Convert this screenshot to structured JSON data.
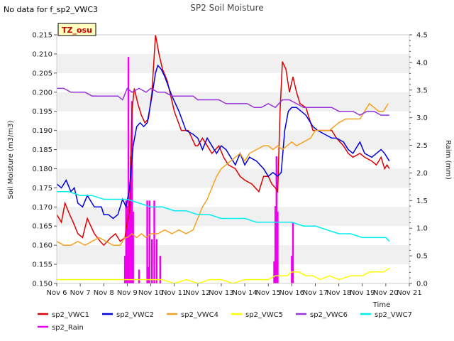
{
  "header": {
    "no_data_note": "No data for f_sp2_VWC3"
  },
  "chart_data": {
    "type": "line",
    "title": "SP2 Soil Moisture",
    "site_badge": "TZ_osu",
    "xlabel": "Time",
    "ylabel": "Soil Moisture (m3/m3)",
    "ylabel_right": "Raim (mm)",
    "xlim": [
      6,
      21
    ],
    "ylim": [
      0.15,
      0.215
    ],
    "ylim_right": [
      0,
      4.5
    ],
    "x_ticks": [
      6,
      7,
      8,
      9,
      10,
      11,
      12,
      13,
      14,
      15,
      16,
      17,
      18,
      19,
      20,
      21
    ],
    "x_tick_labels": [
      "Nov 6",
      "Nov 7",
      "Nov 8",
      "Nov 9",
      "Nov 10",
      "Nov 11",
      "Nov 12",
      "Nov 13",
      "Nov 14",
      "Nov 15",
      "Nov 16",
      "Nov 17",
      "Nov 18",
      "Nov 19",
      "Nov 20",
      "Nov 21"
    ],
    "y_ticks": [
      0.15,
      0.155,
      0.16,
      0.165,
      0.17,
      0.175,
      0.18,
      0.185,
      0.19,
      0.195,
      0.2,
      0.205,
      0.21,
      0.215
    ],
    "y_tick_labels": [
      "0.150",
      "0.155",
      "0.160",
      "0.165",
      "0.170",
      "0.175",
      "0.180",
      "0.185",
      "0.190",
      "0.195",
      "0.200",
      "0.205",
      "0.210",
      "0.215"
    ],
    "y_right_ticks": [
      0.0,
      0.5,
      1.0,
      1.5,
      2.0,
      2.5,
      3.0,
      3.5,
      4.0,
      4.5
    ],
    "y_right_tick_labels": [
      "0.0",
      "0.5",
      "1.0",
      "1.5",
      "2.0",
      "2.5",
      "3.0",
      "3.5",
      "4.0",
      "4.5"
    ],
    "grid": "horizontal bands",
    "legend_position": "bottom",
    "series": [
      {
        "name": "sp2_VWC1",
        "color": "#dd0000",
        "axis": "left",
        "x": [
          6.0,
          6.2,
          6.35,
          6.55,
          6.7,
          6.9,
          7.1,
          7.3,
          7.6,
          7.85,
          8.0,
          8.3,
          8.5,
          8.7,
          8.9,
          9.0,
          9.1,
          9.2,
          9.3,
          9.45,
          9.6,
          9.75,
          9.9,
          10.05,
          10.2,
          10.35,
          10.5,
          10.7,
          11.0,
          11.3,
          11.6,
          11.9,
          12.0,
          12.2,
          12.4,
          12.6,
          12.9,
          13.1,
          13.3,
          13.6,
          13.8,
          14.0,
          14.3,
          14.6,
          14.8,
          15.0,
          15.15,
          15.3,
          15.4,
          15.5,
          15.6,
          15.75,
          15.9,
          16.05,
          16.2,
          16.35,
          16.6,
          16.9,
          17.1,
          17.4,
          17.7,
          17.9,
          18.2,
          18.4,
          18.6,
          18.9,
          19.1,
          19.4,
          19.6,
          19.8,
          19.95,
          20.05,
          20.15
        ],
        "y": [
          0.168,
          0.166,
          0.171,
          0.168,
          0.166,
          0.163,
          0.162,
          0.167,
          0.163,
          0.161,
          0.16,
          0.162,
          0.163,
          0.161,
          0.162,
          0.166,
          0.169,
          0.195,
          0.201,
          0.197,
          0.194,
          0.192,
          0.193,
          0.2,
          0.215,
          0.21,
          0.206,
          0.203,
          0.195,
          0.19,
          0.19,
          0.186,
          0.186,
          0.188,
          0.186,
          0.184,
          0.186,
          0.183,
          0.181,
          0.18,
          0.178,
          0.177,
          0.176,
          0.174,
          0.178,
          0.178,
          0.176,
          0.175,
          0.174,
          0.195,
          0.208,
          0.206,
          0.2,
          0.204,
          0.2,
          0.197,
          0.196,
          0.19,
          0.19,
          0.19,
          0.19,
          0.188,
          0.186,
          0.184,
          0.183,
          0.184,
          0.183,
          0.182,
          0.181,
          0.183,
          0.18,
          0.181,
          0.18
        ]
      },
      {
        "name": "sp2_VWC2",
        "color": "#0000dd",
        "axis": "left",
        "x": [
          6.0,
          6.2,
          6.4,
          6.6,
          6.75,
          6.9,
          7.1,
          7.3,
          7.6,
          7.9,
          8.0,
          8.2,
          8.4,
          8.6,
          8.8,
          8.95,
          9.1,
          9.25,
          9.4,
          9.55,
          9.7,
          9.85,
          10.05,
          10.2,
          10.3,
          10.45,
          10.6,
          10.9,
          11.2,
          11.5,
          11.8,
          12.0,
          12.2,
          12.4,
          12.6,
          12.8,
          13.0,
          13.2,
          13.4,
          13.6,
          13.8,
          14.0,
          14.2,
          14.5,
          14.8,
          15.0,
          15.2,
          15.4,
          15.55,
          15.7,
          15.85,
          16.0,
          16.2,
          16.4,
          16.6,
          16.9,
          17.1,
          17.4,
          17.7,
          17.9,
          18.2,
          18.4,
          18.6,
          18.9,
          19.1,
          19.4,
          19.6,
          19.8,
          19.95,
          20.05,
          20.15
        ],
        "y": [
          0.176,
          0.175,
          0.177,
          0.174,
          0.175,
          0.171,
          0.17,
          0.173,
          0.17,
          0.17,
          0.168,
          0.168,
          0.167,
          0.168,
          0.172,
          0.17,
          0.175,
          0.186,
          0.191,
          0.192,
          0.191,
          0.192,
          0.199,
          0.205,
          0.207,
          0.206,
          0.204,
          0.199,
          0.195,
          0.19,
          0.189,
          0.188,
          0.185,
          0.188,
          0.186,
          0.184,
          0.186,
          0.185,
          0.183,
          0.181,
          0.184,
          0.181,
          0.183,
          0.182,
          0.18,
          0.178,
          0.179,
          0.178,
          0.179,
          0.19,
          0.195,
          0.196,
          0.196,
          0.195,
          0.194,
          0.191,
          0.19,
          0.189,
          0.188,
          0.188,
          0.187,
          0.185,
          0.184,
          0.187,
          0.184,
          0.183,
          0.184,
          0.185,
          0.184,
          0.183,
          0.182
        ]
      },
      {
        "name": "sp2_VWC4",
        "color": "#f5a020",
        "axis": "left",
        "x": [
          6.0,
          6.3,
          6.6,
          6.9,
          7.2,
          7.5,
          7.8,
          8.1,
          8.4,
          8.7,
          8.9,
          9.0,
          9.2,
          9.4,
          9.6,
          9.8,
          10.0,
          10.3,
          10.6,
          10.9,
          11.2,
          11.5,
          11.8,
          12.0,
          12.2,
          12.4,
          12.6,
          12.8,
          13.0,
          13.2,
          13.4,
          13.6,
          13.8,
          14.0,
          14.2,
          14.5,
          14.8,
          15.0,
          15.2,
          15.4,
          15.6,
          15.8,
          16.0,
          16.2,
          16.5,
          16.8,
          17.0,
          17.2,
          17.4,
          17.6,
          17.8,
          18.0,
          18.3,
          18.6,
          18.9,
          19.1,
          19.3,
          19.5,
          19.7,
          19.9,
          20.1
        ],
        "y": [
          0.161,
          0.16,
          0.16,
          0.161,
          0.16,
          0.161,
          0.162,
          0.161,
          0.16,
          0.16,
          0.162,
          0.162,
          0.163,
          0.162,
          0.163,
          0.162,
          0.163,
          0.163,
          0.164,
          0.163,
          0.164,
          0.163,
          0.164,
          0.167,
          0.17,
          0.172,
          0.175,
          0.178,
          0.18,
          0.181,
          0.182,
          0.183,
          0.184,
          0.182,
          0.184,
          0.185,
          0.186,
          0.186,
          0.185,
          0.186,
          0.185,
          0.186,
          0.187,
          0.186,
          0.187,
          0.188,
          0.19,
          0.19,
          0.19,
          0.19,
          0.191,
          0.192,
          0.193,
          0.193,
          0.193,
          0.195,
          0.197,
          0.196,
          0.195,
          0.195,
          0.197
        ]
      },
      {
        "name": "sp2_VWC5",
        "color": "#ffff00",
        "axis": "left",
        "x": [
          6.0,
          7.0,
          8.0,
          8.5,
          9.0,
          9.5,
          10.0,
          10.5,
          11.0,
          11.5,
          12.0,
          12.5,
          13.0,
          13.5,
          14.0,
          14.5,
          15.0,
          15.3,
          15.5,
          15.8,
          16.0,
          16.3,
          16.6,
          16.9,
          17.2,
          17.6,
          18.0,
          18.5,
          19.0,
          19.3,
          19.6,
          19.9,
          20.15
        ],
        "y": [
          0.151,
          0.151,
          0.151,
          0.151,
          0.151,
          0.151,
          0.151,
          0.151,
          0.15,
          0.151,
          0.15,
          0.151,
          0.151,
          0.15,
          0.151,
          0.151,
          0.151,
          0.152,
          0.152,
          0.152,
          0.153,
          0.153,
          0.152,
          0.152,
          0.151,
          0.152,
          0.151,
          0.152,
          0.152,
          0.153,
          0.153,
          0.153,
          0.154
        ]
      },
      {
        "name": "sp2_VWC6",
        "color": "#9933dd",
        "axis": "left",
        "x": [
          6.0,
          6.3,
          6.6,
          6.9,
          7.2,
          7.5,
          7.8,
          8.1,
          8.4,
          8.6,
          8.8,
          9.0,
          9.2,
          9.5,
          9.8,
          10.0,
          10.3,
          10.6,
          10.9,
          11.2,
          11.5,
          11.8,
          12.0,
          12.3,
          12.6,
          12.9,
          13.2,
          13.5,
          13.8,
          14.1,
          14.4,
          14.7,
          15.0,
          15.3,
          15.6,
          15.9,
          16.2,
          16.5,
          16.8,
          17.1,
          17.4,
          17.7,
          18.0,
          18.3,
          18.6,
          18.9,
          19.2,
          19.5,
          19.8,
          20.15
        ],
        "y": [
          0.201,
          0.201,
          0.2,
          0.2,
          0.2,
          0.199,
          0.199,
          0.199,
          0.199,
          0.199,
          0.198,
          0.201,
          0.2,
          0.201,
          0.2,
          0.201,
          0.2,
          0.2,
          0.199,
          0.199,
          0.199,
          0.199,
          0.198,
          0.198,
          0.198,
          0.198,
          0.197,
          0.197,
          0.197,
          0.197,
          0.196,
          0.196,
          0.197,
          0.196,
          0.198,
          0.198,
          0.197,
          0.196,
          0.196,
          0.196,
          0.196,
          0.196,
          0.195,
          0.195,
          0.195,
          0.194,
          0.195,
          0.195,
          0.194,
          0.194
        ]
      },
      {
        "name": "sp2_VWC7",
        "color": "#00eeee",
        "axis": "left",
        "x": [
          6.0,
          6.5,
          7.0,
          7.5,
          8.0,
          8.5,
          9.0,
          9.5,
          10.0,
          10.5,
          11.0,
          11.5,
          12.0,
          12.5,
          13.0,
          13.5,
          14.0,
          14.5,
          15.0,
          15.5,
          16.0,
          16.5,
          17.0,
          17.5,
          18.0,
          18.5,
          19.0,
          19.5,
          20.0,
          20.15
        ],
        "y": [
          0.174,
          0.174,
          0.173,
          0.173,
          0.172,
          0.172,
          0.172,
          0.171,
          0.17,
          0.17,
          0.169,
          0.169,
          0.168,
          0.168,
          0.167,
          0.167,
          0.167,
          0.166,
          0.166,
          0.166,
          0.166,
          0.165,
          0.165,
          0.164,
          0.163,
          0.163,
          0.162,
          0.162,
          0.162,
          0.161
        ]
      }
    ],
    "bars": {
      "name": "sp2_Rain",
      "color": "#ee00ee",
      "axis": "right",
      "x": [
        8.9,
        8.95,
        9.0,
        9.05,
        9.1,
        9.15,
        9.2,
        9.25,
        9.5,
        9.85,
        9.9,
        9.95,
        10.05,
        10.15,
        10.25,
        10.4,
        15.25,
        15.3,
        15.35,
        15.4,
        16.0,
        16.05
      ],
      "values": [
        0.5,
        1.5,
        1.4,
        4.1,
        1.5,
        2.3,
        3.3,
        1.3,
        0.25,
        1.5,
        0.3,
        1.5,
        0.8,
        1.5,
        0.8,
        0.5,
        0.4,
        1.4,
        2.3,
        1.3,
        0.5,
        1.1
      ]
    }
  }
}
